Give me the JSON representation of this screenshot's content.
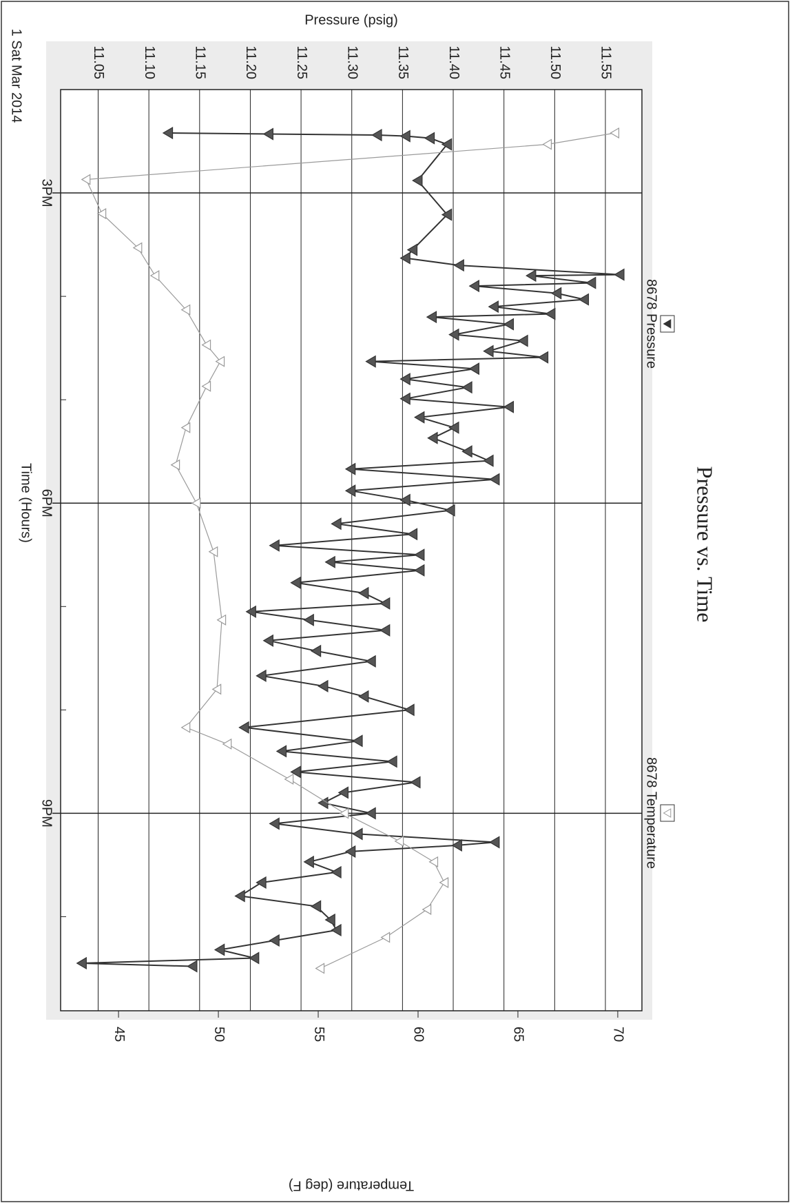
{
  "chart_data": {
    "type": "line",
    "title": "Pressure vs. Time",
    "xlabel": "Time (Hours)",
    "ylabel": "Pressure (psig)",
    "y2label": "Temperature (deg F)",
    "date_label": "1 Sat Mar 2014",
    "xlim": [
      14,
      22.91
    ],
    "xticks": [
      {
        "value": 15,
        "label": "3PM"
      },
      {
        "value": 18,
        "label": "6PM"
      },
      {
        "value": 21,
        "label": "9PM"
      }
    ],
    "xminorticks": [
      16,
      17,
      19,
      20,
      22
    ],
    "ylim": [
      11.013,
      11.586
    ],
    "yticks": [
      11.05,
      {
        "value": 11.1,
        "label": "11.10"
      },
      11.15,
      {
        "value": 11.2,
        "label": "11.20"
      },
      11.25,
      {
        "value": 11.3,
        "label": "11.30"
      },
      11.35,
      {
        "value": 11.4,
        "label": "11.40"
      },
      11.45,
      {
        "value": 11.5,
        "label": "11.50"
      },
      11.55
    ],
    "y2lim": [
      42.1,
      71.21
    ],
    "y2ticks": [
      45,
      50,
      55,
      60,
      65,
      70
    ],
    "grid": true,
    "series": [
      {
        "name": "8678 Pressure",
        "color": "#333333",
        "marker": "filled",
        "x": [
          14.42,
          14.43,
          14.44,
          14.45,
          14.47,
          14.53,
          14.88,
          15.21,
          15.55,
          15.63,
          15.7,
          15.79,
          15.8,
          15.87,
          15.9,
          15.97,
          16.03,
          16.1,
          16.17,
          16.2,
          16.27,
          16.37,
          16.43,
          16.53,
          16.59,
          16.63,
          16.7,
          16.8,
          16.88,
          16.99,
          17.07,
          17.17,
          17.27,
          17.37,
          17.5,
          17.59,
          17.67,
          17.77,
          17.88,
          17.97,
          18.07,
          18.2,
          18.3,
          18.41,
          18.5,
          18.57,
          18.65,
          18.77,
          18.87,
          18.97,
          19.05,
          19.13,
          19.23,
          19.33,
          19.43,
          19.53,
          19.67,
          19.77,
          19.87,
          20.0,
          20.17,
          20.3,
          20.4,
          20.5,
          20.6,
          20.7,
          20.8,
          20.9,
          21.0,
          21.1,
          21.2,
          21.28,
          21.31,
          21.37,
          21.47,
          21.57,
          21.67,
          21.8,
          21.9,
          22.03,
          22.13,
          22.23,
          22.32,
          22.4,
          22.45,
          22.48
        ],
        "values": [
          11.119,
          11.218,
          11.325,
          11.353,
          11.377,
          11.394,
          11.365,
          11.394,
          11.36,
          11.353,
          11.406,
          11.564,
          11.477,
          11.536,
          11.421,
          11.502,
          11.529,
          11.44,
          11.496,
          11.379,
          11.455,
          11.401,
          11.469,
          11.435,
          11.489,
          11.319,
          11.421,
          11.353,
          11.414,
          11.353,
          11.455,
          11.367,
          11.401,
          11.38,
          11.414,
          11.435,
          11.299,
          11.441,
          11.299,
          11.353,
          11.397,
          11.285,
          11.36,
          11.224,
          11.367,
          11.279,
          11.367,
          11.245,
          11.312,
          11.333,
          11.201,
          11.258,
          11.333,
          11.218,
          11.265,
          11.319,
          11.211,
          11.272,
          11.312,
          11.357,
          11.194,
          11.306,
          11.231,
          11.34,
          11.245,
          11.363,
          11.292,
          11.272,
          11.319,
          11.224,
          11.306,
          11.441,
          11.404,
          11.299,
          11.258,
          11.285,
          11.211,
          11.19,
          11.265,
          11.279,
          11.285,
          11.224,
          11.17,
          11.204,
          11.034,
          11.143
        ]
      },
      {
        "name": "8678 Temperature",
        "color": "#9a9a9a",
        "marker": "open",
        "axis": "y2",
        "x": [
          14.42,
          14.53,
          14.87,
          15.2,
          15.53,
          15.8,
          16.13,
          16.47,
          16.63,
          16.87,
          17.27,
          17.63,
          18.0,
          18.47,
          19.13,
          19.8,
          20.17,
          20.33,
          20.67,
          21.0,
          21.27,
          21.47,
          21.67,
          21.93,
          22.2,
          22.5
        ],
        "values": [
          69.86,
          66.48,
          43.38,
          44.17,
          45.97,
          46.83,
          48.38,
          49.41,
          50.1,
          49.41,
          48.38,
          47.86,
          48.9,
          49.76,
          50.17,
          49.93,
          48.38,
          50.45,
          53.55,
          56.31,
          59.07,
          60.79,
          61.31,
          60.45,
          58.38,
          55.1
        ]
      }
    ]
  }
}
